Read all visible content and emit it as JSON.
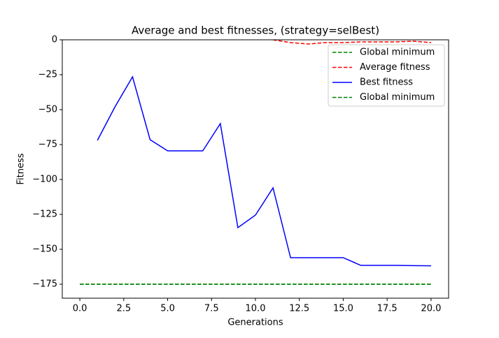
{
  "chart_data": {
    "type": "line",
    "title": "Average and best fitnesses, (strategy=selBest)",
    "xlabel": "Generations",
    "ylabel": "Fitness",
    "xlim": [
      -1.0,
      21.0
    ],
    "ylim": [
      -185,
      0
    ],
    "xticks": [
      {
        "value": 0,
        "label": "0.0"
      },
      {
        "value": 2.5,
        "label": "2.5"
      },
      {
        "value": 5,
        "label": "5.0"
      },
      {
        "value": 7.5,
        "label": "7.5"
      },
      {
        "value": 10,
        "label": "10.0"
      },
      {
        "value": 12.5,
        "label": "12.5"
      },
      {
        "value": 15,
        "label": "15.0"
      },
      {
        "value": 17.5,
        "label": "17.5"
      },
      {
        "value": 20,
        "label": "20.0"
      }
    ],
    "yticks": [
      0,
      {
        "value": -25,
        "label": "−25"
      },
      {
        "value": -50,
        "label": "−50"
      },
      {
        "value": -75,
        "label": "−75"
      },
      {
        "value": -100,
        "label": "−100"
      },
      {
        "value": -125,
        "label": "−125"
      },
      {
        "value": -150,
        "label": "−150"
      },
      {
        "value": -175,
        "label": "−175"
      }
    ],
    "legend": "upper right",
    "series": [
      {
        "name": "Global minimum",
        "color": "#008000",
        "dashed": true,
        "x": [
          0,
          20
        ],
        "values": [
          -175,
          -175
        ]
      },
      {
        "name": "Average fitness",
        "color": "#ff0000",
        "dashed": true,
        "x": [
          11,
          12,
          13,
          14,
          15,
          16,
          17,
          18,
          19,
          20
        ],
        "values": [
          0,
          -2,
          -3,
          -2,
          -2,
          -1.5,
          -1.5,
          -1.5,
          -1,
          -2
        ]
      },
      {
        "name": "Best fitness",
        "color": "#0000ff",
        "dashed": false,
        "x": [
          1,
          2,
          3,
          4,
          5,
          6,
          7,
          8,
          9,
          10,
          11,
          12,
          13,
          14,
          15,
          16,
          17,
          18,
          19,
          20
        ],
        "values": [
          -72,
          -48,
          -26.5,
          -71.5,
          -79.5,
          -79.5,
          -79.5,
          -60,
          -134.5,
          -125.5,
          -106,
          -156,
          -156,
          -156,
          -156,
          -161.5,
          -161.5,
          -161.5,
          -161.7,
          -161.8
        ]
      },
      {
        "name": "Global minimum",
        "color": "#008000",
        "dashed": true,
        "x": [
          0,
          20
        ],
        "values": [
          -175,
          -175
        ]
      }
    ]
  }
}
